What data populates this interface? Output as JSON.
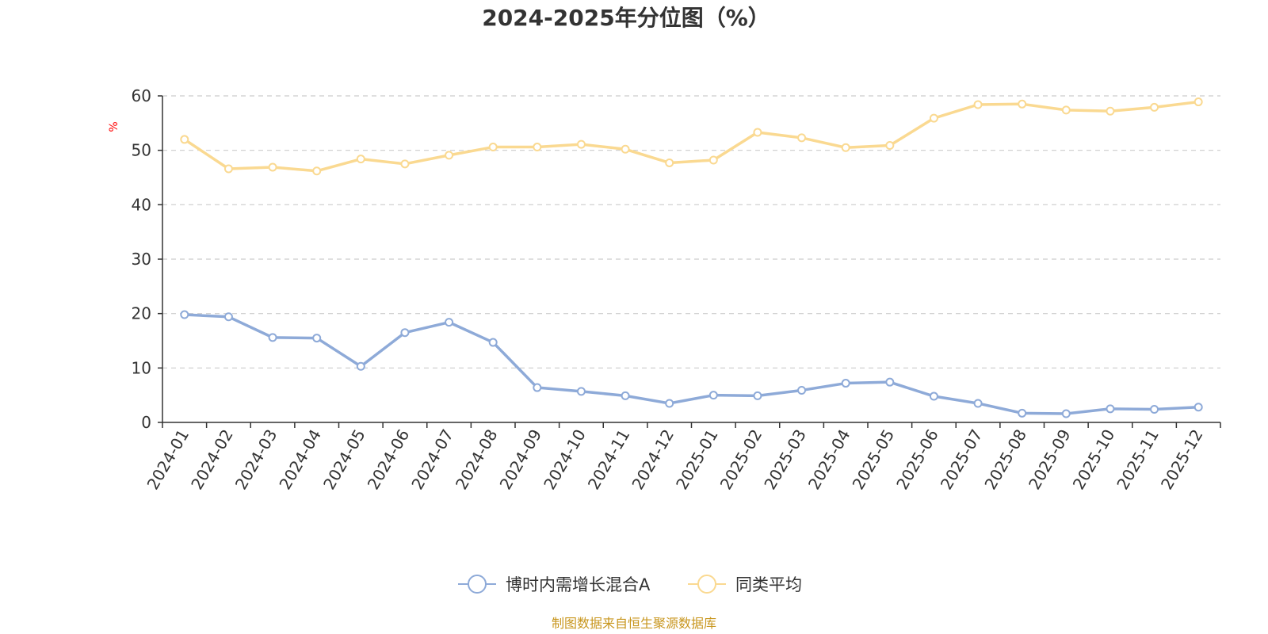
{
  "chart_data": {
    "type": "line",
    "title": "2024-2025年分位图（%）",
    "xlabel": "",
    "ylabel": "%",
    "ylim": [
      0,
      60
    ],
    "yticks": [
      0,
      10,
      20,
      30,
      40,
      50,
      60
    ],
    "grid": true,
    "legend_position": "bottom-center",
    "categories": [
      "2024-01",
      "2024-02",
      "2024-03",
      "2024-04",
      "2024-05",
      "2024-06",
      "2024-07",
      "2024-08",
      "2024-09",
      "2024-10",
      "2024-11",
      "2024-12",
      "2025-01",
      "2025-02",
      "2025-03",
      "2025-04",
      "2025-05",
      "2025-06",
      "2025-07",
      "2025-08",
      "2025-09",
      "2025-10",
      "2025-11",
      "2025-12"
    ],
    "series": [
      {
        "name": "博时内需增长混合A",
        "color": "#8eaad8",
        "values": [
          19.8,
          19.4,
          15.6,
          15.5,
          10.3,
          16.5,
          18.4,
          14.7,
          6.4,
          5.7,
          4.9,
          3.5,
          5.0,
          4.9,
          5.9,
          7.2,
          7.4,
          4.8,
          3.5,
          1.7,
          1.6,
          2.5,
          2.4,
          2.8
        ]
      },
      {
        "name": "同类平均",
        "color": "#fad991",
        "values": [
          52.0,
          46.6,
          46.9,
          46.2,
          48.4,
          47.5,
          49.1,
          50.6,
          50.6,
          51.1,
          50.2,
          47.7,
          48.2,
          53.3,
          52.3,
          50.5,
          50.9,
          55.9,
          58.4,
          58.5,
          57.4,
          57.2,
          57.9,
          58.9
        ]
      }
    ],
    "ylabel_color": "#ff0000",
    "source_text": "制图数据来自恒生聚源数据库",
    "source_color": "#c8961e"
  }
}
